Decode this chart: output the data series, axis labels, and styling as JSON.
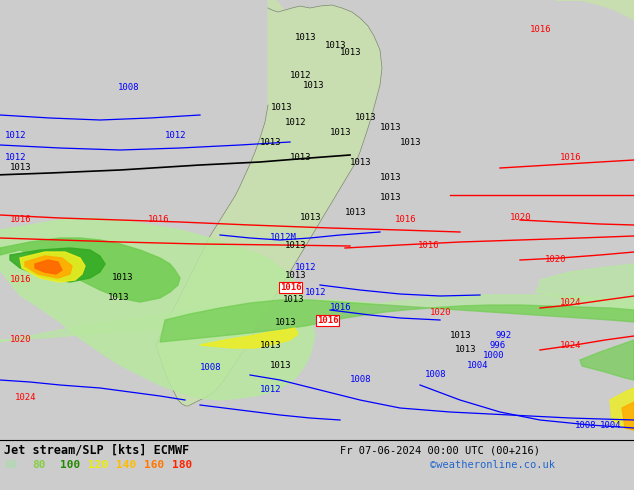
{
  "title_left": "Jet stream/SLP [kts] ECMWF",
  "title_right": "Fr 07-06-2024 00:00 UTC (00+216)",
  "credit": "©weatheronline.co.uk",
  "legend_values": [
    60,
    80,
    100,
    120,
    140,
    160,
    180
  ],
  "legend_colors": [
    "#b0e8a0",
    "#70d050",
    "#00cc00",
    "#ffff00",
    "#ffcc00",
    "#ff8800",
    "#ff4400"
  ],
  "bg_color": "#cccccc",
  "ocean_color": "#d8d8d8",
  "land_color": "#c8ddb0",
  "land_color2": "#b8d090",
  "figsize": [
    6.34,
    4.9
  ],
  "dpi": 100,
  "jet_light_green": "#b8e8a0",
  "jet_mid_green": "#70cc50",
  "jet_dark_green": "#30aa20",
  "jet_yellow": "#eeee20",
  "jet_orange": "#ffaa00",
  "jet_red_orange": "#ff6600"
}
